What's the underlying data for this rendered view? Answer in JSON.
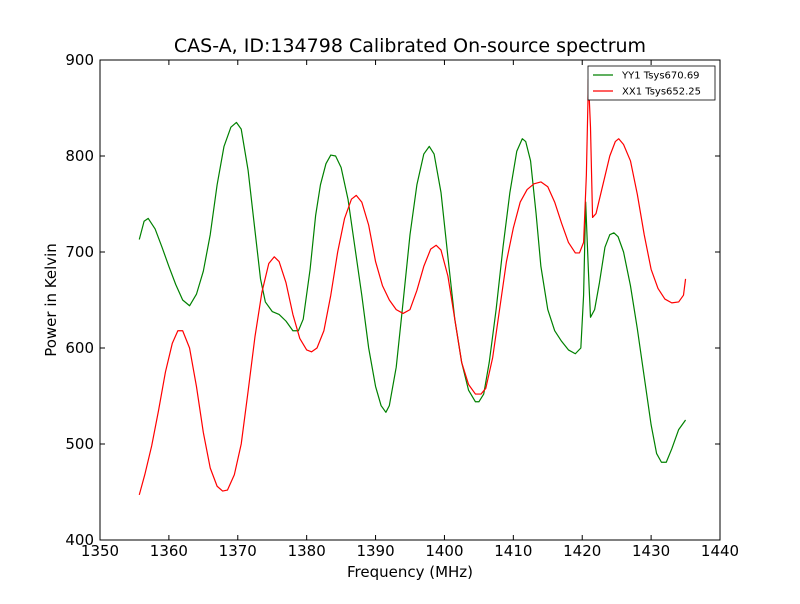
{
  "chart_data": {
    "type": "line",
    "title": "CAS-A, ID:134798 Calibrated On-source spectrum",
    "xlabel": "Frequency (MHz)",
    "ylabel": "Power in Kelvin",
    "xlim": [
      1350,
      1440
    ],
    "ylim": [
      400,
      900
    ],
    "xticks": [
      1350,
      1360,
      1370,
      1380,
      1390,
      1400,
      1410,
      1420,
      1430,
      1440
    ],
    "yticks": [
      400,
      500,
      600,
      700,
      800,
      900
    ],
    "grid": false,
    "legend_position": "top-right",
    "series": [
      {
        "name": "YY1 Tsys670.69",
        "color": "#008000",
        "points": [
          [
            1355.7,
            713
          ],
          [
            1356.4,
            732
          ],
          [
            1357.0,
            735
          ],
          [
            1358.0,
            724
          ],
          [
            1359.0,
            705
          ],
          [
            1360.0,
            685
          ],
          [
            1361.0,
            666
          ],
          [
            1362.0,
            650
          ],
          [
            1363.0,
            644
          ],
          [
            1364.0,
            656
          ],
          [
            1365.0,
            680
          ],
          [
            1366.0,
            718
          ],
          [
            1367.0,
            770
          ],
          [
            1368.0,
            810
          ],
          [
            1369.0,
            830
          ],
          [
            1369.8,
            835
          ],
          [
            1370.5,
            828
          ],
          [
            1371.5,
            785
          ],
          [
            1372.5,
            722
          ],
          [
            1373.3,
            672
          ],
          [
            1374.0,
            648
          ],
          [
            1375.0,
            638
          ],
          [
            1376.0,
            635
          ],
          [
            1377.0,
            628
          ],
          [
            1378.0,
            618
          ],
          [
            1378.8,
            618
          ],
          [
            1379.5,
            630
          ],
          [
            1380.5,
            682
          ],
          [
            1381.3,
            738
          ],
          [
            1382.0,
            770
          ],
          [
            1382.8,
            792
          ],
          [
            1383.5,
            801
          ],
          [
            1384.2,
            800
          ],
          [
            1385.0,
            788
          ],
          [
            1386.0,
            755
          ],
          [
            1387.0,
            705
          ],
          [
            1388.0,
            655
          ],
          [
            1389.0,
            600
          ],
          [
            1390.0,
            560
          ],
          [
            1390.8,
            540
          ],
          [
            1391.5,
            533
          ],
          [
            1392.0,
            540
          ],
          [
            1393.0,
            580
          ],
          [
            1394.0,
            648
          ],
          [
            1395.0,
            718
          ],
          [
            1396.0,
            770
          ],
          [
            1397.0,
            802
          ],
          [
            1397.8,
            810
          ],
          [
            1398.5,
            802
          ],
          [
            1399.5,
            762
          ],
          [
            1400.5,
            695
          ],
          [
            1401.5,
            630
          ],
          [
            1402.5,
            585
          ],
          [
            1403.5,
            556
          ],
          [
            1404.5,
            544
          ],
          [
            1405.0,
            544
          ],
          [
            1405.7,
            552
          ],
          [
            1406.5,
            585
          ],
          [
            1407.5,
            640
          ],
          [
            1408.5,
            705
          ],
          [
            1409.5,
            762
          ],
          [
            1410.5,
            805
          ],
          [
            1411.3,
            818
          ],
          [
            1411.8,
            815
          ],
          [
            1412.5,
            795
          ],
          [
            1413.3,
            740
          ],
          [
            1414.0,
            685
          ],
          [
            1415.0,
            640
          ],
          [
            1416.0,
            618
          ],
          [
            1417.0,
            607
          ],
          [
            1418.0,
            598
          ],
          [
            1419.0,
            594
          ],
          [
            1419.8,
            600
          ],
          [
            1420.2,
            655
          ],
          [
            1420.5,
            752
          ],
          [
            1420.9,
            680
          ],
          [
            1421.2,
            632
          ],
          [
            1421.8,
            640
          ],
          [
            1422.5,
            668
          ],
          [
            1423.3,
            705
          ],
          [
            1424.0,
            718
          ],
          [
            1424.6,
            720
          ],
          [
            1425.2,
            716
          ],
          [
            1426.0,
            700
          ],
          [
            1427.0,
            665
          ],
          [
            1428.0,
            620
          ],
          [
            1429.0,
            570
          ],
          [
            1430.0,
            520
          ],
          [
            1430.8,
            490
          ],
          [
            1431.5,
            481
          ],
          [
            1432.2,
            481
          ],
          [
            1433.0,
            495
          ],
          [
            1434.0,
            515
          ],
          [
            1435.0,
            525
          ]
        ]
      },
      {
        "name": "XX1 Tsys652.25",
        "color": "#ff0000",
        "points": [
          [
            1355.7,
            447
          ],
          [
            1356.5,
            468
          ],
          [
            1357.5,
            498
          ],
          [
            1358.5,
            535
          ],
          [
            1359.5,
            575
          ],
          [
            1360.5,
            605
          ],
          [
            1361.3,
            618
          ],
          [
            1362.0,
            618
          ],
          [
            1363.0,
            600
          ],
          [
            1364.0,
            560
          ],
          [
            1365.0,
            512
          ],
          [
            1366.0,
            475
          ],
          [
            1367.0,
            456
          ],
          [
            1367.8,
            451
          ],
          [
            1368.5,
            452
          ],
          [
            1369.5,
            468
          ],
          [
            1370.5,
            500
          ],
          [
            1371.5,
            555
          ],
          [
            1372.5,
            612
          ],
          [
            1373.5,
            658
          ],
          [
            1374.5,
            688
          ],
          [
            1375.3,
            695
          ],
          [
            1376.0,
            690
          ],
          [
            1377.0,
            668
          ],
          [
            1378.0,
            635
          ],
          [
            1379.0,
            610
          ],
          [
            1380.0,
            598
          ],
          [
            1380.7,
            596
          ],
          [
            1381.5,
            600
          ],
          [
            1382.5,
            618
          ],
          [
            1383.5,
            655
          ],
          [
            1384.5,
            700
          ],
          [
            1385.5,
            735
          ],
          [
            1386.5,
            755
          ],
          [
            1387.2,
            759
          ],
          [
            1388.0,
            752
          ],
          [
            1389.0,
            728
          ],
          [
            1390.0,
            690
          ],
          [
            1391.0,
            665
          ],
          [
            1392.0,
            650
          ],
          [
            1393.0,
            640
          ],
          [
            1394.0,
            636
          ],
          [
            1395.0,
            640
          ],
          [
            1396.0,
            660
          ],
          [
            1397.0,
            685
          ],
          [
            1398.0,
            703
          ],
          [
            1398.8,
            707
          ],
          [
            1399.5,
            702
          ],
          [
            1400.5,
            675
          ],
          [
            1401.5,
            630
          ],
          [
            1402.5,
            585
          ],
          [
            1403.5,
            562
          ],
          [
            1404.5,
            552
          ],
          [
            1405.3,
            552
          ],
          [
            1406.0,
            558
          ],
          [
            1407.0,
            590
          ],
          [
            1408.0,
            640
          ],
          [
            1409.0,
            690
          ],
          [
            1410.0,
            725
          ],
          [
            1411.0,
            752
          ],
          [
            1412.0,
            765
          ],
          [
            1413.0,
            771
          ],
          [
            1414.0,
            773
          ],
          [
            1415.0,
            768
          ],
          [
            1416.0,
            752
          ],
          [
            1417.0,
            730
          ],
          [
            1418.0,
            710
          ],
          [
            1419.0,
            699
          ],
          [
            1419.6,
            699
          ],
          [
            1420.2,
            710
          ],
          [
            1420.6,
            780
          ],
          [
            1420.9,
            880
          ],
          [
            1421.2,
            830
          ],
          [
            1421.5,
            736
          ],
          [
            1422.0,
            740
          ],
          [
            1423.0,
            770
          ],
          [
            1424.0,
            800
          ],
          [
            1424.8,
            815
          ],
          [
            1425.3,
            818
          ],
          [
            1426.0,
            812
          ],
          [
            1427.0,
            795
          ],
          [
            1428.0,
            760
          ],
          [
            1429.0,
            718
          ],
          [
            1430.0,
            682
          ],
          [
            1431.0,
            662
          ],
          [
            1432.0,
            651
          ],
          [
            1433.0,
            647
          ],
          [
            1434.0,
            648
          ],
          [
            1434.7,
            655
          ],
          [
            1435.0,
            672
          ]
        ]
      }
    ]
  }
}
